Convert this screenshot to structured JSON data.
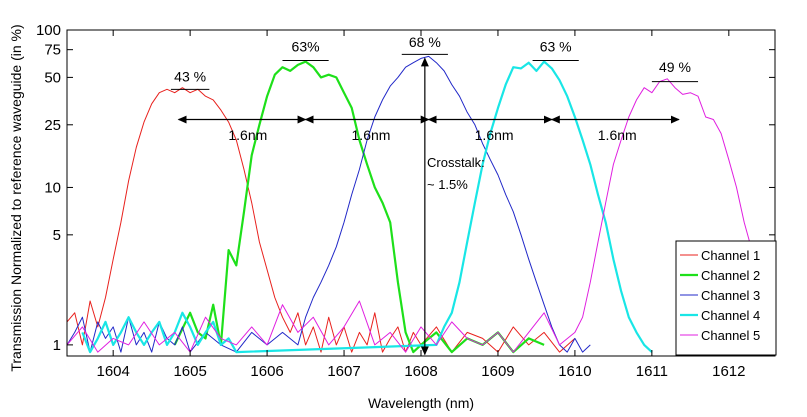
{
  "chart_data": {
    "type": "line",
    "xlabel": "Wavelength (nm)",
    "ylabel": "Transmission Normalized to reference waveguide (in %)",
    "xlim": [
      1603.4,
      1612.6
    ],
    "ylim": [
      0.85,
      100
    ],
    "yscale": "log",
    "xticks": [
      1604,
      1605,
      1606,
      1607,
      1608,
      1609,
      1610,
      1611,
      1612
    ],
    "yticks": [
      1,
      5,
      10,
      25,
      50,
      75,
      100
    ],
    "grid": false,
    "legend_position": "bottom-right",
    "series": [
      {
        "name": "Channel 1",
        "color": "#e8211d",
        "width": 1,
        "x": [
          1603.4,
          1603.5,
          1603.6,
          1603.7,
          1603.8,
          1603.9,
          1604.0,
          1604.1,
          1604.2,
          1604.3,
          1604.4,
          1604.5,
          1604.6,
          1604.7,
          1604.8,
          1604.9,
          1605.0,
          1605.1,
          1605.2,
          1605.3,
          1605.4,
          1605.5,
          1605.6,
          1605.7,
          1605.8,
          1605.9,
          1606.0,
          1606.1,
          1606.2,
          1606.3,
          1606.4,
          1606.5,
          1606.6,
          1606.7,
          1606.8,
          1606.9,
          1607.0,
          1607.1,
          1607.2,
          1607.3,
          1607.4,
          1607.5,
          1607.6,
          1607.7,
          1607.8,
          1607.9,
          1608.0,
          1608.2,
          1608.4,
          1608.6,
          1608.8,
          1609.0,
          1609.2,
          1609.4,
          1609.6,
          1609.8,
          1610.0
        ],
        "y": [
          1.4,
          1.6,
          1.0,
          1.9,
          1.3,
          2.0,
          3.5,
          6.0,
          11,
          18,
          26,
          34,
          40,
          42,
          40,
          43,
          40,
          42,
          38,
          36,
          31,
          26,
          20,
          13,
          8.0,
          4.5,
          3.0,
          2.0,
          1.5,
          1.2,
          1.6,
          1.0,
          1.3,
          0.9,
          1.5,
          1.0,
          1.3,
          0.9,
          1.2,
          1.0,
          1.6,
          0.9,
          1.1,
          1.3,
          0.9,
          1.2,
          1.0,
          1.3,
          0.9,
          1.2,
          1.1,
          0.9,
          1.3,
          1.0,
          1.2,
          0.9,
          1.1
        ]
      },
      {
        "name": "Channel 2",
        "color": "#1ee01a",
        "width": 2.2,
        "x": [
          1604.8,
          1605.0,
          1605.1,
          1605.2,
          1605.3,
          1605.4,
          1605.5,
          1605.6,
          1605.7,
          1605.8,
          1605.9,
          1606.0,
          1606.1,
          1606.2,
          1606.3,
          1606.4,
          1606.5,
          1606.6,
          1606.7,
          1606.8,
          1606.9,
          1607.0,
          1607.1,
          1607.2,
          1607.3,
          1607.4,
          1607.5,
          1607.6,
          1607.7,
          1607.8,
          1607.9,
          1608.0,
          1608.2,
          1608.4,
          1608.6,
          1608.8,
          1609.0,
          1609.2,
          1609.4,
          1609.6
        ],
        "y": [
          1.0,
          1.6,
          1.2,
          1.1,
          1.8,
          1.0,
          4.0,
          3.2,
          7.0,
          16,
          25,
          38,
          52,
          58,
          55,
          60,
          63,
          58,
          50,
          52,
          50,
          40,
          32,
          20,
          14,
          10,
          8.0,
          6.0,
          2.5,
          1.2,
          0.9,
          1.0,
          1.2,
          0.9,
          1.1,
          1.0,
          1.2,
          0.9,
          1.1,
          1.0
        ]
      },
      {
        "name": "Channel 3",
        "color": "#2128c8",
        "width": 1,
        "x": [
          1603.4,
          1603.5,
          1603.6,
          1603.7,
          1603.8,
          1603.9,
          1604.0,
          1604.1,
          1604.2,
          1604.3,
          1604.4,
          1604.5,
          1604.6,
          1604.7,
          1604.8,
          1604.9,
          1605.0,
          1605.2,
          1605.4,
          1605.6,
          1605.8,
          1606.0,
          1606.2,
          1606.4,
          1606.5,
          1606.6,
          1606.7,
          1606.8,
          1606.9,
          1607.0,
          1607.1,
          1607.2,
          1607.3,
          1607.4,
          1607.5,
          1607.6,
          1607.7,
          1607.8,
          1607.9,
          1608.0,
          1608.1,
          1608.2,
          1608.3,
          1608.4,
          1608.5,
          1608.6,
          1608.7,
          1608.8,
          1608.9,
          1609.0,
          1609.1,
          1609.2,
          1609.3,
          1609.4,
          1609.5,
          1609.6,
          1609.7,
          1609.8,
          1609.9,
          1610.0,
          1610.1,
          1610.2
        ],
        "y": [
          1.0,
          1.2,
          1.5,
          0.9,
          1.4,
          1.1,
          1.3,
          0.9,
          1.5,
          1.0,
          1.2,
          0.9,
          1.4,
          1.1,
          1.0,
          1.3,
          0.9,
          1.2,
          1.0,
          0.9,
          1.2,
          1.0,
          1.2,
          1.0,
          1.5,
          2.0,
          2.5,
          3.2,
          4.2,
          6.0,
          9.0,
          13,
          20,
          28,
          36,
          44,
          50,
          58,
          62,
          66,
          68,
          62,
          55,
          45,
          38,
          30,
          25,
          19,
          15,
          12,
          9.0,
          7.0,
          5.0,
          3.5,
          2.5,
          1.8,
          1.3,
          1.0,
          0.9,
          1.1,
          0.9,
          1.0
        ]
      },
      {
        "name": "Channel 4",
        "color": "#19e6e6",
        "width": 2.2,
        "x": [
          1603.6,
          1603.7,
          1603.8,
          1603.9,
          1604.0,
          1604.1,
          1604.2,
          1604.3,
          1604.4,
          1604.5,
          1604.6,
          1604.7,
          1604.8,
          1604.9,
          1605.0,
          1605.1,
          1605.2,
          1605.3,
          1605.4,
          1605.5,
          1605.6,
          1608.2,
          1608.3,
          1608.4,
          1608.5,
          1608.6,
          1608.7,
          1608.8,
          1608.9,
          1609.0,
          1609.1,
          1609.2,
          1609.3,
          1609.4,
          1609.5,
          1609.6,
          1609.7,
          1609.8,
          1609.9,
          1610.0,
          1610.1,
          1610.2,
          1610.3,
          1610.4,
          1610.5,
          1610.6,
          1610.7,
          1610.8,
          1610.9,
          1611.0
        ],
        "y": [
          1.2,
          0.9,
          1.1,
          1.4,
          1.0,
          1.2,
          1.5,
          1.2,
          1.0,
          1.2,
          1.4,
          1.0,
          1.2,
          1.6,
          1.3,
          1.0,
          1.2,
          1.4,
          1.0,
          1.1,
          0.9,
          1.0,
          1.3,
          1.6,
          2.5,
          4.5,
          8.0,
          14,
          22,
          32,
          45,
          58,
          57,
          62,
          55,
          63,
          57,
          48,
          38,
          28,
          20,
          14,
          9.0,
          6.0,
          3.5,
          2.2,
          1.5,
          1.2,
          1.0,
          0.9
        ]
      },
      {
        "name": "Channel 5",
        "color": "#e01fe0",
        "width": 1,
        "x": [
          1603.4,
          1603.6,
          1603.8,
          1604.0,
          1604.2,
          1604.4,
          1604.6,
          1604.8,
          1605.0,
          1605.2,
          1605.4,
          1605.6,
          1605.8,
          1606.0,
          1606.2,
          1606.4,
          1606.6,
          1606.8,
          1607.0,
          1607.2,
          1607.4,
          1607.6,
          1607.8,
          1608.0,
          1608.2,
          1608.4,
          1608.6,
          1608.8,
          1609.0,
          1609.2,
          1609.4,
          1609.6,
          1609.8,
          1610.0,
          1610.1,
          1610.2,
          1610.3,
          1610.4,
          1610.5,
          1610.6,
          1610.7,
          1610.8,
          1610.9,
          1611.0,
          1611.1,
          1611.2,
          1611.3,
          1611.4,
          1611.5,
          1611.6,
          1611.7,
          1611.8,
          1611.9,
          1612.0,
          1612.1,
          1612.2,
          1612.3
        ],
        "y": [
          1.0,
          1.3,
          0.9,
          1.1,
          1.0,
          1.4,
          1.0,
          1.2,
          0.9,
          1.5,
          1.1,
          1.0,
          1.3,
          1.0,
          1.8,
          1.2,
          1.5,
          1.0,
          1.3,
          1.9,
          1.0,
          1.2,
          0.9,
          1.3,
          1.0,
          1.4,
          1.1,
          1.0,
          1.2,
          0.9,
          1.2,
          1.6,
          1.0,
          1.2,
          1.5,
          2.5,
          4.5,
          8.0,
          14,
          20,
          28,
          36,
          43,
          40,
          47,
          49,
          43,
          39,
          40,
          38,
          28,
          27,
          22,
          15,
          10,
          6.0,
          4.0
        ]
      }
    ],
    "annotations": [
      {
        "text": "43 %",
        "x": 1605.0,
        "y": 47,
        "line_x": [
          1604.75,
          1605.25
        ],
        "line_y": 42
      },
      {
        "text": "63%",
        "x": 1606.5,
        "y": 73,
        "line_x": [
          1606.2,
          1606.8
        ],
        "line_y": 64
      },
      {
        "text": "68 %",
        "x": 1608.05,
        "y": 78,
        "line_x": [
          1607.75,
          1608.35
        ],
        "line_y": 70
      },
      {
        "text": "63 %",
        "x": 1609.75,
        "y": 73,
        "line_x": [
          1609.45,
          1610.05
        ],
        "line_y": 64
      },
      {
        "text": "49 %",
        "x": 1611.3,
        "y": 54,
        "line_x": [
          1611.0,
          1611.6
        ],
        "line_y": 47
      },
      {
        "text": "1.6nm",
        "x": 1605.75,
        "y": 20
      },
      {
        "text": "1.6nm",
        "x": 1607.35,
        "y": 20
      },
      {
        "text": "1.6nm",
        "x": 1608.95,
        "y": 20
      },
      {
        "text": "1.6nm",
        "x": 1610.55,
        "y": 20
      },
      {
        "text": "Crosstalk:",
        "x": 1608.0,
        "y": 13.5
      },
      {
        "text": "~ 1.5%",
        "x": 1608.0,
        "y": 9.8
      }
    ],
    "arrows": [
      {
        "x1": 1604.85,
        "x2": 1606.5,
        "y": 27
      },
      {
        "x1": 1606.5,
        "x2": 1608.1,
        "y": 27
      },
      {
        "x1": 1608.1,
        "x2": 1609.7,
        "y": 27
      },
      {
        "x1": 1609.7,
        "x2": 1611.35,
        "y": 27
      }
    ],
    "vertical_arrow": {
      "x": 1608.05,
      "y_top": 66,
      "y_bottom": 0.87
    }
  }
}
